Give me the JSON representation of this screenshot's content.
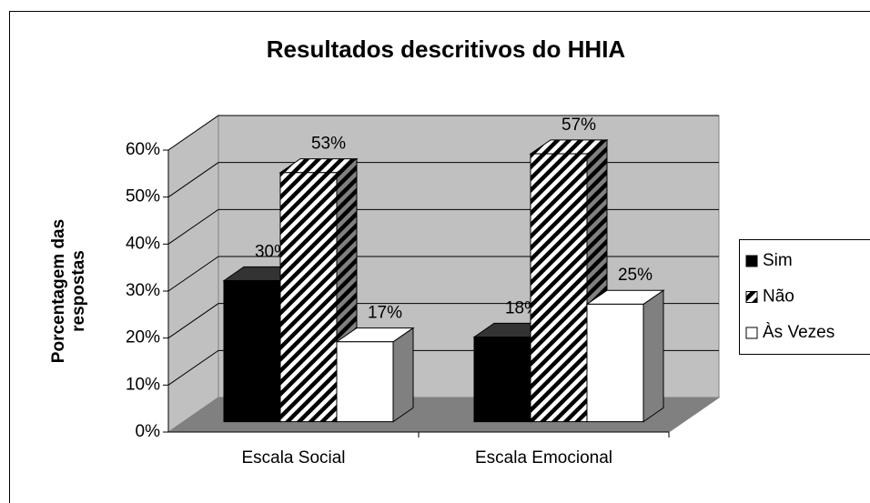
{
  "chart_data": {
    "type": "bar3d",
    "title": "Resultados descritivos do HHIA",
    "ylabel": "Porcentagem das respostas",
    "categories": [
      "Escala Social",
      "Escala Emocional"
    ],
    "series": [
      {
        "name": "Sim",
        "color": "#000000",
        "values": [
          30,
          18
        ],
        "value_labels": [
          "30%",
          "18%"
        ]
      },
      {
        "name": "Não",
        "color": "hatch",
        "values": [
          53,
          57
        ],
        "value_labels": [
          "53%",
          "57%"
        ]
      },
      {
        "name": "Às Vezes",
        "color": "#ffffff",
        "values": [
          17,
          25
        ],
        "value_labels": [
          "17%",
          "25%"
        ]
      }
    ],
    "ylim": [
      0,
      60
    ],
    "yticks": [
      {
        "value": 0,
        "label": "0%"
      },
      {
        "value": 10,
        "label": "10%"
      },
      {
        "value": 20,
        "label": "20%"
      },
      {
        "value": 30,
        "label": "30%"
      },
      {
        "value": 40,
        "label": "40%"
      },
      {
        "value": 50,
        "label": "50%"
      },
      {
        "value": 60,
        "label": "60%"
      }
    ],
    "grid": true,
    "legend": "right"
  }
}
